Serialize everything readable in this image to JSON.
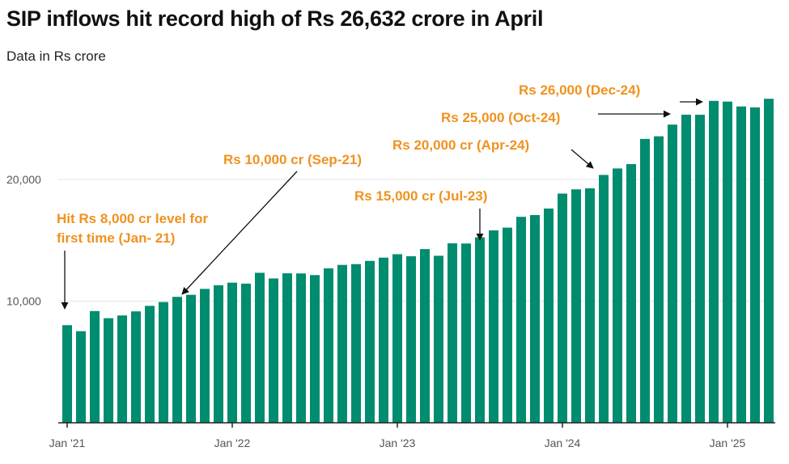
{
  "chart_data": {
    "type": "bar",
    "title": "SIP inflows hit record high of Rs 26,632 crore in April",
    "subtitle": "Data in Rs crore",
    "xlabel": "",
    "ylabel": "",
    "ylim": [
      0,
      27500
    ],
    "grid": true,
    "bar_color": "#008C6E",
    "annotation_color": "#F0921E",
    "categories": [
      "Jan-21",
      "Feb-21",
      "Mar-21",
      "Apr-21",
      "May-21",
      "Jun-21",
      "Jul-21",
      "Aug-21",
      "Sep-21",
      "Oct-21",
      "Nov-21",
      "Dec-21",
      "Jan-22",
      "Feb-22",
      "Mar-22",
      "Apr-22",
      "May-22",
      "Jun-22",
      "Jul-22",
      "Aug-22",
      "Sep-22",
      "Oct-22",
      "Nov-22",
      "Dec-22",
      "Jan-23",
      "Feb-23",
      "Mar-23",
      "Apr-23",
      "May-23",
      "Jun-23",
      "Jul-23",
      "Aug-23",
      "Sep-23",
      "Oct-23",
      "Nov-23",
      "Dec-23",
      "Jan-24",
      "Feb-24",
      "Mar-24",
      "Apr-24",
      "May-24",
      "Jun-24",
      "Jul-24",
      "Aug-24",
      "Sep-24",
      "Oct-24",
      "Nov-24",
      "Dec-24",
      "Jan-25",
      "Feb-25",
      "Mar-25",
      "Apr-25"
    ],
    "values": [
      8023,
      7528,
      9182,
      8596,
      8819,
      9156,
      9609,
      9923,
      10351,
      10519,
      11005,
      11305,
      11517,
      11438,
      12328,
      11863,
      12286,
      12276,
      12140,
      12693,
      12976,
      13041,
      13306,
      13573,
      13856,
      13686,
      14276,
      13728,
      14749,
      14734,
      15245,
      15814,
      16042,
      16928,
      17073,
      17610,
      18838,
      19187,
      19271,
      20371,
      20904,
      21262,
      23332,
      23547,
      24509,
      25323,
      25320,
      26459,
      26400,
      25999,
      25926,
      26632
    ],
    "y_ticks": [
      {
        "value": 10000,
        "label": "10,000"
      },
      {
        "value": 20000,
        "label": "20,000"
      }
    ],
    "x_ticks": [
      {
        "index": 0,
        "label": "Jan '21"
      },
      {
        "index": 12,
        "label": "Jan '22"
      },
      {
        "index": 24,
        "label": "Jan '23"
      },
      {
        "index": 36,
        "label": "Jan '24"
      },
      {
        "index": 48,
        "label": "Jan '25"
      }
    ],
    "annotations": [
      {
        "lines": [
          "Hit Rs 8,000 cr level for",
          "first time (Jan- 21)"
        ],
        "index": 0
      },
      {
        "lines": [
          "Rs 10,000 cr (Sep-21)"
        ],
        "index": 8
      },
      {
        "lines": [
          "Rs 15,000 cr (Jul-23)"
        ],
        "index": 30
      },
      {
        "lines": [
          "Rs 20,000 cr (Apr-24)"
        ],
        "index": 39
      },
      {
        "lines": [
          "Rs 25,000 (Oct-24)"
        ],
        "index": 45
      },
      {
        "lines": [
          "Rs 26,000 (Dec-24)"
        ],
        "index": 47
      }
    ]
  }
}
